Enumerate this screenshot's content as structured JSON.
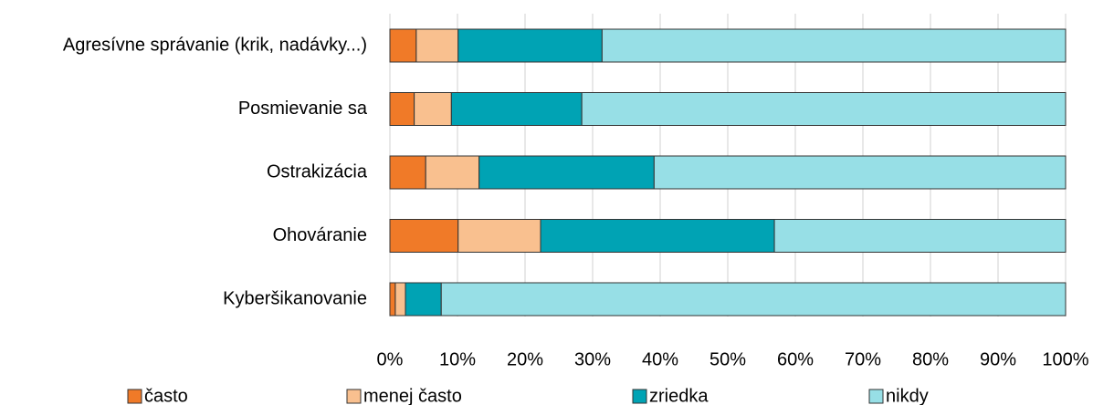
{
  "chart_data": {
    "type": "stacked_bar_horizontal",
    "categories": [
      "Agresívne správanie (krik, nadávky...)",
      "Posmievanie sa",
      "Ostrakizácia",
      "Ohováranie",
      "Kyberšikanovanie"
    ],
    "series": [
      {
        "name": "často",
        "color": "#f07a28",
        "values": [
          3.9,
          3.6,
          5.3,
          10.1,
          0.8
        ]
      },
      {
        "name": "menej často",
        "color": "#f9c08f",
        "values": [
          6.2,
          5.5,
          7.9,
          12.2,
          1.5
        ]
      },
      {
        "name": "zriedka",
        "color": "#00a3b4",
        "values": [
          21.3,
          19.3,
          25.9,
          34.6,
          5.3
        ]
      },
      {
        "name": "nikdy",
        "color": "#97dfe6",
        "values": [
          68.6,
          71.6,
          60.9,
          43.1,
          92.4
        ]
      }
    ],
    "xlim": [
      0,
      100
    ],
    "xticks": [
      {
        "value": 0,
        "label": "0%"
      },
      {
        "value": 10,
        "label": "10%"
      },
      {
        "value": 20,
        "label": "20%"
      },
      {
        "value": 30,
        "label": "30%"
      },
      {
        "value": 40,
        "label": "40%"
      },
      {
        "value": 50,
        "label": "50%"
      },
      {
        "value": 60,
        "label": "60%"
      },
      {
        "value": 70,
        "label": "70%"
      },
      {
        "value": 80,
        "label": "80%"
      },
      {
        "value": 90,
        "label": "90%"
      },
      {
        "value": 100,
        "label": "100%"
      }
    ],
    "grid": true,
    "legend": "bottom"
  }
}
